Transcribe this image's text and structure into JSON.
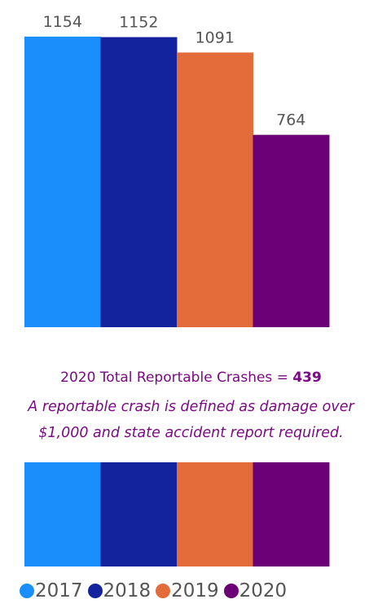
{
  "chart_data": {
    "type": "bar",
    "categories": [
      "2017",
      "2018",
      "2019",
      "2020"
    ],
    "values": [
      1154,
      1152,
      1091,
      764
    ],
    "colors": [
      "#1a8ffb",
      "#13239d",
      "#e46c3a",
      "#6b0077"
    ],
    "ylim": [
      0,
      1154
    ],
    "legend": {
      "placement": "bottom",
      "entries": [
        "2017",
        "2018",
        "2019",
        "2020"
      ]
    }
  },
  "summary": {
    "prefix": "2020 Total Reportable Crashes = ",
    "value": "439"
  },
  "note": {
    "line1": "A reportable crash is defined as damage over",
    "line2": "$1,000 and state accident report required."
  }
}
